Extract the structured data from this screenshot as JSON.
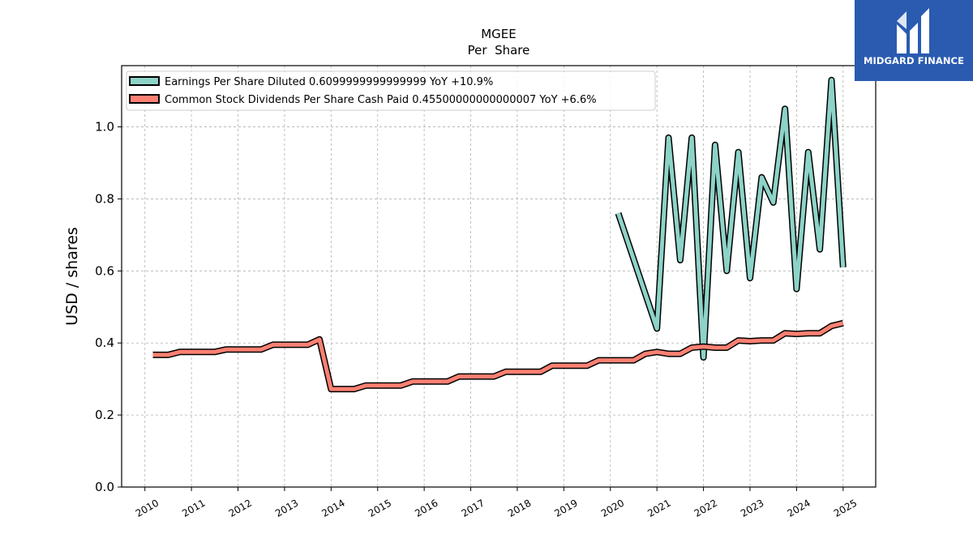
{
  "brand": {
    "name": "MIDGARD FINANCE",
    "logo_icon": "midgard-logo-icon"
  },
  "chart_data": {
    "type": "line",
    "title": "MGEE",
    "subtitle": "Per  Share",
    "ylabel": "USD / shares",
    "xlabel": "",
    "ylim": [
      0.0,
      1.17
    ],
    "xlim": [
      2009.5,
      2025.7
    ],
    "yticks": [
      "0.0",
      "0.2",
      "0.4",
      "0.6",
      "0.8",
      "1.0"
    ],
    "xticks": [
      "2010",
      "2011",
      "2012",
      "2013",
      "2014",
      "2015",
      "2016",
      "2017",
      "2018",
      "2019",
      "2020",
      "2021",
      "2022",
      "2023",
      "2024",
      "2025"
    ],
    "grid": true,
    "legend_position": "top-left",
    "series": [
      {
        "name": "Earnings Per Share Diluted  0.6099999999999999 YoY +10.9%",
        "color": "#8dd3c7",
        "points": [
          [
            2020.17,
            0.76
          ],
          [
            2021.0,
            0.44
          ],
          [
            2021.25,
            0.97
          ],
          [
            2021.5,
            0.63
          ],
          [
            2021.75,
            0.97
          ],
          [
            2022.0,
            0.36
          ],
          [
            2022.25,
            0.95
          ],
          [
            2022.5,
            0.6
          ],
          [
            2022.75,
            0.93
          ],
          [
            2023.0,
            0.58
          ],
          [
            2023.25,
            0.86
          ],
          [
            2023.5,
            0.79
          ],
          [
            2023.75,
            1.05
          ],
          [
            2024.0,
            0.55
          ],
          [
            2024.25,
            0.93
          ],
          [
            2024.5,
            0.66
          ],
          [
            2024.75,
            1.13
          ],
          [
            2025.0,
            0.61
          ]
        ]
      },
      {
        "name": "Common Stock Dividends Per Share Cash Paid  0.45500000000000007 YoY +6.6%",
        "color": "#fb8072",
        "points": [
          [
            2010.17,
            0.367
          ],
          [
            2010.5,
            0.367
          ],
          [
            2010.75,
            0.375
          ],
          [
            2011.0,
            0.375
          ],
          [
            2011.5,
            0.375
          ],
          [
            2011.75,
            0.382
          ],
          [
            2012.0,
            0.382
          ],
          [
            2012.5,
            0.382
          ],
          [
            2012.75,
            0.395
          ],
          [
            2013.0,
            0.395
          ],
          [
            2013.5,
            0.395
          ],
          [
            2013.75,
            0.41
          ],
          [
            2014.0,
            0.272
          ],
          [
            2014.5,
            0.272
          ],
          [
            2014.75,
            0.282
          ],
          [
            2015.0,
            0.282
          ],
          [
            2015.5,
            0.282
          ],
          [
            2015.75,
            0.293
          ],
          [
            2016.0,
            0.293
          ],
          [
            2016.5,
            0.293
          ],
          [
            2016.75,
            0.307
          ],
          [
            2017.0,
            0.307
          ],
          [
            2017.5,
            0.307
          ],
          [
            2017.75,
            0.32
          ],
          [
            2018.0,
            0.32
          ],
          [
            2018.5,
            0.32
          ],
          [
            2018.75,
            0.337
          ],
          [
            2019.0,
            0.337
          ],
          [
            2019.5,
            0.337
          ],
          [
            2019.75,
            0.352
          ],
          [
            2020.0,
            0.352
          ],
          [
            2020.5,
            0.352
          ],
          [
            2020.75,
            0.37
          ],
          [
            2021.0,
            0.375
          ],
          [
            2021.25,
            0.37
          ],
          [
            2021.5,
            0.37
          ],
          [
            2021.75,
            0.387
          ],
          [
            2022.0,
            0.39
          ],
          [
            2022.25,
            0.387
          ],
          [
            2022.5,
            0.387
          ],
          [
            2022.75,
            0.407
          ],
          [
            2023.0,
            0.405
          ],
          [
            2023.25,
            0.407
          ],
          [
            2023.5,
            0.407
          ],
          [
            2023.75,
            0.427
          ],
          [
            2024.0,
            0.425
          ],
          [
            2024.25,
            0.427
          ],
          [
            2024.5,
            0.427
          ],
          [
            2024.75,
            0.447
          ],
          [
            2025.0,
            0.455
          ]
        ]
      }
    ]
  }
}
